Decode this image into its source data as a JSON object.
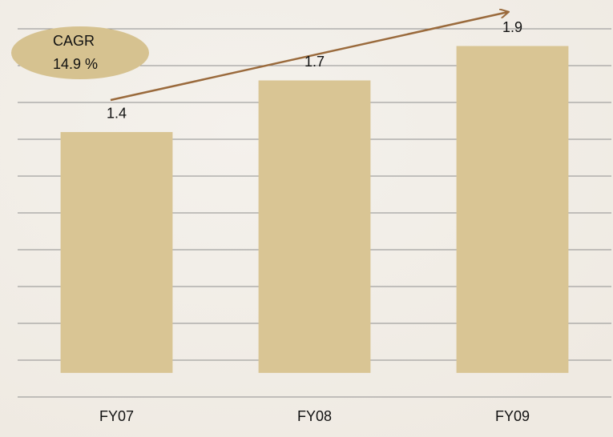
{
  "chart_data": {
    "type": "bar",
    "categories": [
      "FY07",
      "FY08",
      "FY09"
    ],
    "values": [
      1.4,
      1.7,
      1.9
    ],
    "color": "#d9c594",
    "ylim": [
      -0.14,
      2.0
    ],
    "annotation": {
      "label": "CAGR",
      "value": "14.9 %"
    }
  }
}
